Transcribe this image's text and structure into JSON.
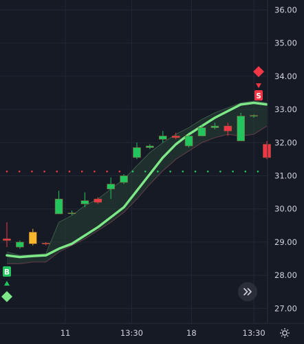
{
  "chart_data": {
    "type": "candlestick",
    "y_ticks": [
      "36.00",
      "35.00",
      "34.00",
      "33.00",
      "32.00",
      "31.00",
      "30.00",
      "29.00",
      "28.00",
      "27.00"
    ],
    "y_tick_values": [
      36,
      35,
      34,
      33,
      32,
      31,
      30,
      29,
      28,
      27
    ],
    "ylim": [
      26.55,
      36.3
    ],
    "x_ticks": [
      "11",
      "13:30",
      "18",
      "13:30"
    ],
    "x_tick_index": [
      4.5,
      9.6,
      14.2,
      19.0
    ],
    "grid": true,
    "candles": [
      {
        "o": 29.05,
        "h": 29.6,
        "l": 28.85,
        "c": 29.1,
        "color": "#f23645"
      },
      {
        "o": 28.85,
        "h": 29.05,
        "l": 28.8,
        "c": 29.0,
        "color": "#22c55e"
      },
      {
        "o": 28.95,
        "h": 29.4,
        "l": 28.9,
        "c": 29.3,
        "color": "#f7b92b"
      },
      {
        "o": 28.95,
        "h": 29.0,
        "l": 28.9,
        "c": 28.97,
        "color": "#f23645"
      },
      {
        "o": 29.85,
        "h": 30.55,
        "l": 29.85,
        "c": 30.3,
        "color": "#22c55e"
      },
      {
        "o": 29.88,
        "h": 29.95,
        "l": 29.82,
        "c": 29.88,
        "color": "#22c55e"
      },
      {
        "o": 30.15,
        "h": 30.5,
        "l": 30.05,
        "c": 30.25,
        "color": "#22c55e"
      },
      {
        "o": 30.2,
        "h": 30.35,
        "l": 30.15,
        "c": 30.3,
        "color": "#f23645"
      },
      {
        "o": 30.6,
        "h": 30.95,
        "l": 30.3,
        "c": 30.75,
        "color": "#22c55e"
      },
      {
        "o": 30.8,
        "h": 31.05,
        "l": 30.75,
        "c": 31.0,
        "color": "#22c55e"
      },
      {
        "o": 31.55,
        "h": 32.0,
        "l": 31.5,
        "c": 31.85,
        "color": "#22c55e"
      },
      {
        "o": 31.85,
        "h": 31.95,
        "l": 31.8,
        "c": 31.9,
        "color": "#22c55e"
      },
      {
        "o": 32.1,
        "h": 32.35,
        "l": 32.0,
        "c": 32.2,
        "color": "#22c55e"
      },
      {
        "o": 32.15,
        "h": 32.3,
        "l": 32.1,
        "c": 32.2,
        "color": "#f23645"
      },
      {
        "o": 31.9,
        "h": 32.25,
        "l": 31.85,
        "c": 32.2,
        "color": "#22c55e"
      },
      {
        "o": 32.2,
        "h": 32.55,
        "l": 32.2,
        "c": 32.45,
        "color": "#22c55e"
      },
      {
        "o": 32.45,
        "h": 32.6,
        "l": 32.4,
        "c": 32.5,
        "color": "#22c55e"
      },
      {
        "o": 32.5,
        "h": 32.6,
        "l": 32.2,
        "c": 32.35,
        "color": "#f23645"
      },
      {
        "o": 32.05,
        "h": 32.9,
        "l": 32.05,
        "c": 32.8,
        "color": "#22c55e"
      },
      {
        "o": 32.8,
        "h": 32.85,
        "l": 32.75,
        "c": 32.82,
        "color": "#22c55e"
      },
      {
        "o": 31.95,
        "h": 32.05,
        "l": 31.5,
        "c": 31.55,
        "color": "#f23645"
      }
    ],
    "trend_line": [
      28.6,
      28.55,
      28.58,
      28.6,
      28.8,
      28.95,
      29.2,
      29.45,
      29.75,
      30.05,
      30.55,
      31.05,
      31.55,
      31.95,
      32.25,
      32.5,
      32.75,
      32.95,
      33.15,
      33.2,
      33.15
    ],
    "band_lower": [
      28.35,
      28.35,
      28.4,
      28.4,
      28.7,
      28.9,
      29.1,
      29.35,
      29.6,
      29.9,
      30.3,
      30.75,
      31.15,
      31.5,
      31.75,
      32.0,
      32.15,
      32.25,
      32.2,
      32.25,
      32.5
    ],
    "band_upper": [
      28.7,
      28.6,
      28.62,
      28.65,
      29.6,
      29.8,
      30.1,
      30.3,
      30.6,
      30.9,
      31.3,
      31.7,
      32.0,
      32.25,
      32.45,
      32.7,
      32.9,
      33.05,
      33.2,
      33.25,
      33.2
    ],
    "dots_red_value": 31.13,
    "dots_green_value": 31.13,
    "signals": [
      {
        "type": "buy",
        "label": "B",
        "candle": 0,
        "color": "#22c55e"
      },
      {
        "type": "sell",
        "label": "S",
        "candle": 20,
        "color": "#f23645"
      }
    ],
    "colors": {
      "background": "#161a25",
      "up": "#22c55e",
      "down": "#f23645",
      "neutral": "#f7b92b",
      "trend": "#7ee787",
      "band": "#2a4a3a"
    }
  },
  "controls": {
    "scroll_button_icon": "double-chevron-right-icon",
    "settings_icon": "settings-gear-icon"
  }
}
